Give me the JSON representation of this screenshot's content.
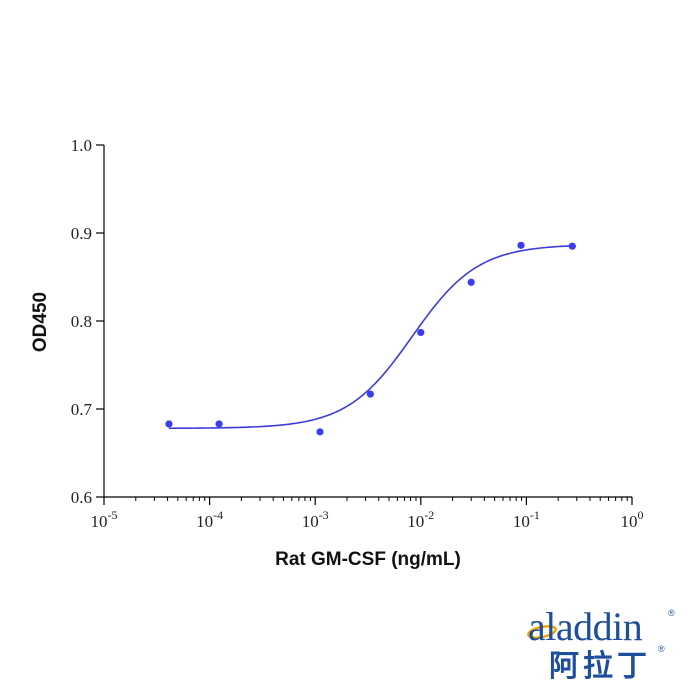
{
  "chart_data": {
    "type": "scatter",
    "xscale": "log",
    "xlim": [
      1e-05,
      1
    ],
    "ylim": [
      0.6,
      1.0
    ],
    "xlabel": "Rat GM-CSF (ng/mL)",
    "ylabel": "OD450",
    "x_tick_bases": [
      "10",
      "10",
      "10",
      "10",
      "10",
      "10"
    ],
    "x_tick_exponents": [
      "-5",
      "-4",
      "-3",
      "-2",
      "-1",
      "0"
    ],
    "x_tick_values": [
      1e-05,
      0.0001,
      0.001,
      0.01,
      0.1,
      1
    ],
    "y_ticks": [
      "0.6",
      "0.7",
      "0.8",
      "0.9",
      "1.0"
    ],
    "y_tick_values": [
      0.6,
      0.7,
      0.8,
      0.9,
      1.0
    ],
    "series": [
      {
        "x": [
          4.12e-05,
          0.000123,
          0.00111,
          0.00333,
          0.01,
          0.03,
          0.0889,
          0.272
        ],
        "y": [
          0.683,
          0.683,
          0.674,
          0.717,
          0.787,
          0.844,
          0.886,
          0.885
        ]
      }
    ],
    "fit": {
      "type": "4PL",
      "bottom": 0.678,
      "top": 0.887,
      "ec50": 0.0083,
      "hill": 1.4,
      "x_range": [
        4.12e-05,
        0.272
      ]
    },
    "colors": {
      "points": "#3c3cf0",
      "curve": "#3c3cde",
      "axis": "#000000"
    },
    "grid": false,
    "legend": "none"
  },
  "logo": {
    "word": "aladdin",
    "chinese": "阿拉丁",
    "registered": "®",
    "color": "#1d4f9c",
    "accent": "#f0a500"
  }
}
